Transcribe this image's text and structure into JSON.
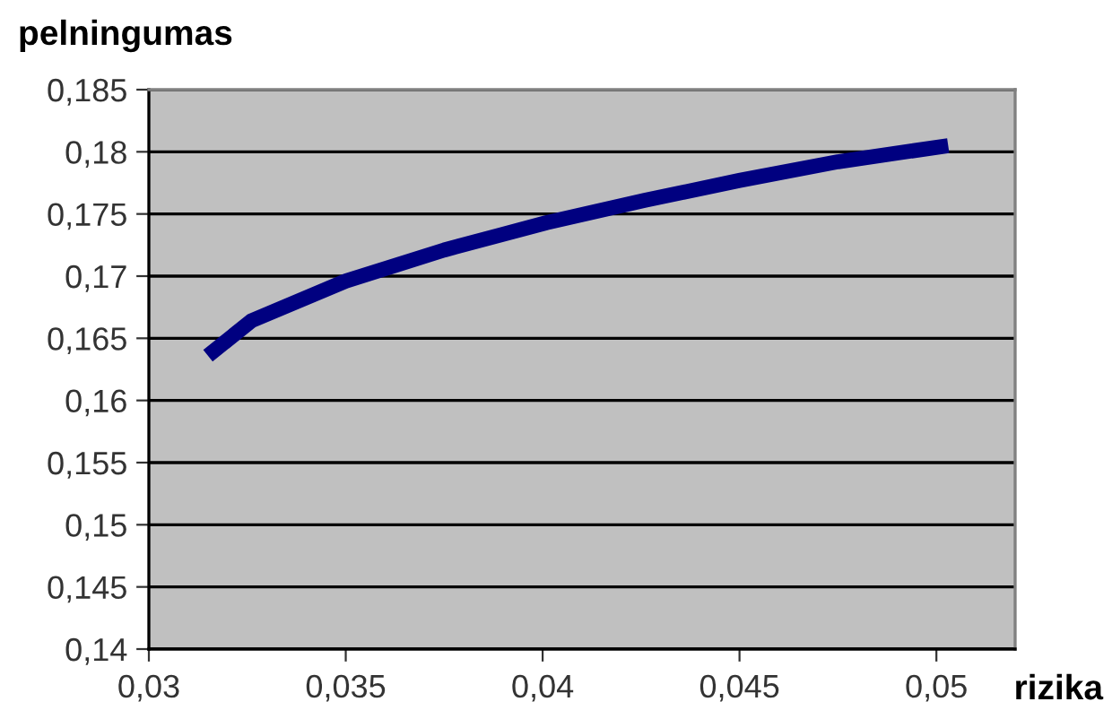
{
  "chart_data": {
    "type": "line",
    "xlabel": "rizika",
    "ylabel": "pelningumas",
    "series": [
      {
        "color": "#000080",
        "x": [
          0.0315,
          0.0326,
          0.035,
          0.0375,
          0.0401,
          0.0426,
          0.045,
          0.0475,
          0.0503
        ],
        "values": [
          0.1636,
          0.1664,
          0.1696,
          0.1721,
          0.1743,
          0.1761,
          0.1777,
          0.1792,
          0.1805
        ]
      }
    ],
    "xlim": [
      0.03,
      0.052
    ],
    "ylim": [
      0.14,
      0.185
    ],
    "xticks": [
      {
        "value": 0.03,
        "label": "0,03"
      },
      {
        "value": 0.035,
        "label": "0,035"
      },
      {
        "value": 0.04,
        "label": "0,04"
      },
      {
        "value": 0.045,
        "label": "0,045"
      },
      {
        "value": 0.05,
        "label": "0,05"
      }
    ],
    "yticks": [
      {
        "value": 0.14,
        "label": "0,14"
      },
      {
        "value": 0.145,
        "label": "0,145"
      },
      {
        "value": 0.15,
        "label": "0,15"
      },
      {
        "value": 0.155,
        "label": "0,155"
      },
      {
        "value": 0.16,
        "label": "0,16"
      },
      {
        "value": 0.165,
        "label": "0,165"
      },
      {
        "value": 0.17,
        "label": "0,17"
      },
      {
        "value": 0.175,
        "label": "0,175"
      },
      {
        "value": 0.18,
        "label": "0,18"
      },
      {
        "value": 0.185,
        "label": "0,185"
      }
    ],
    "grid": "y",
    "marker": "none",
    "line_style": "solid"
  }
}
